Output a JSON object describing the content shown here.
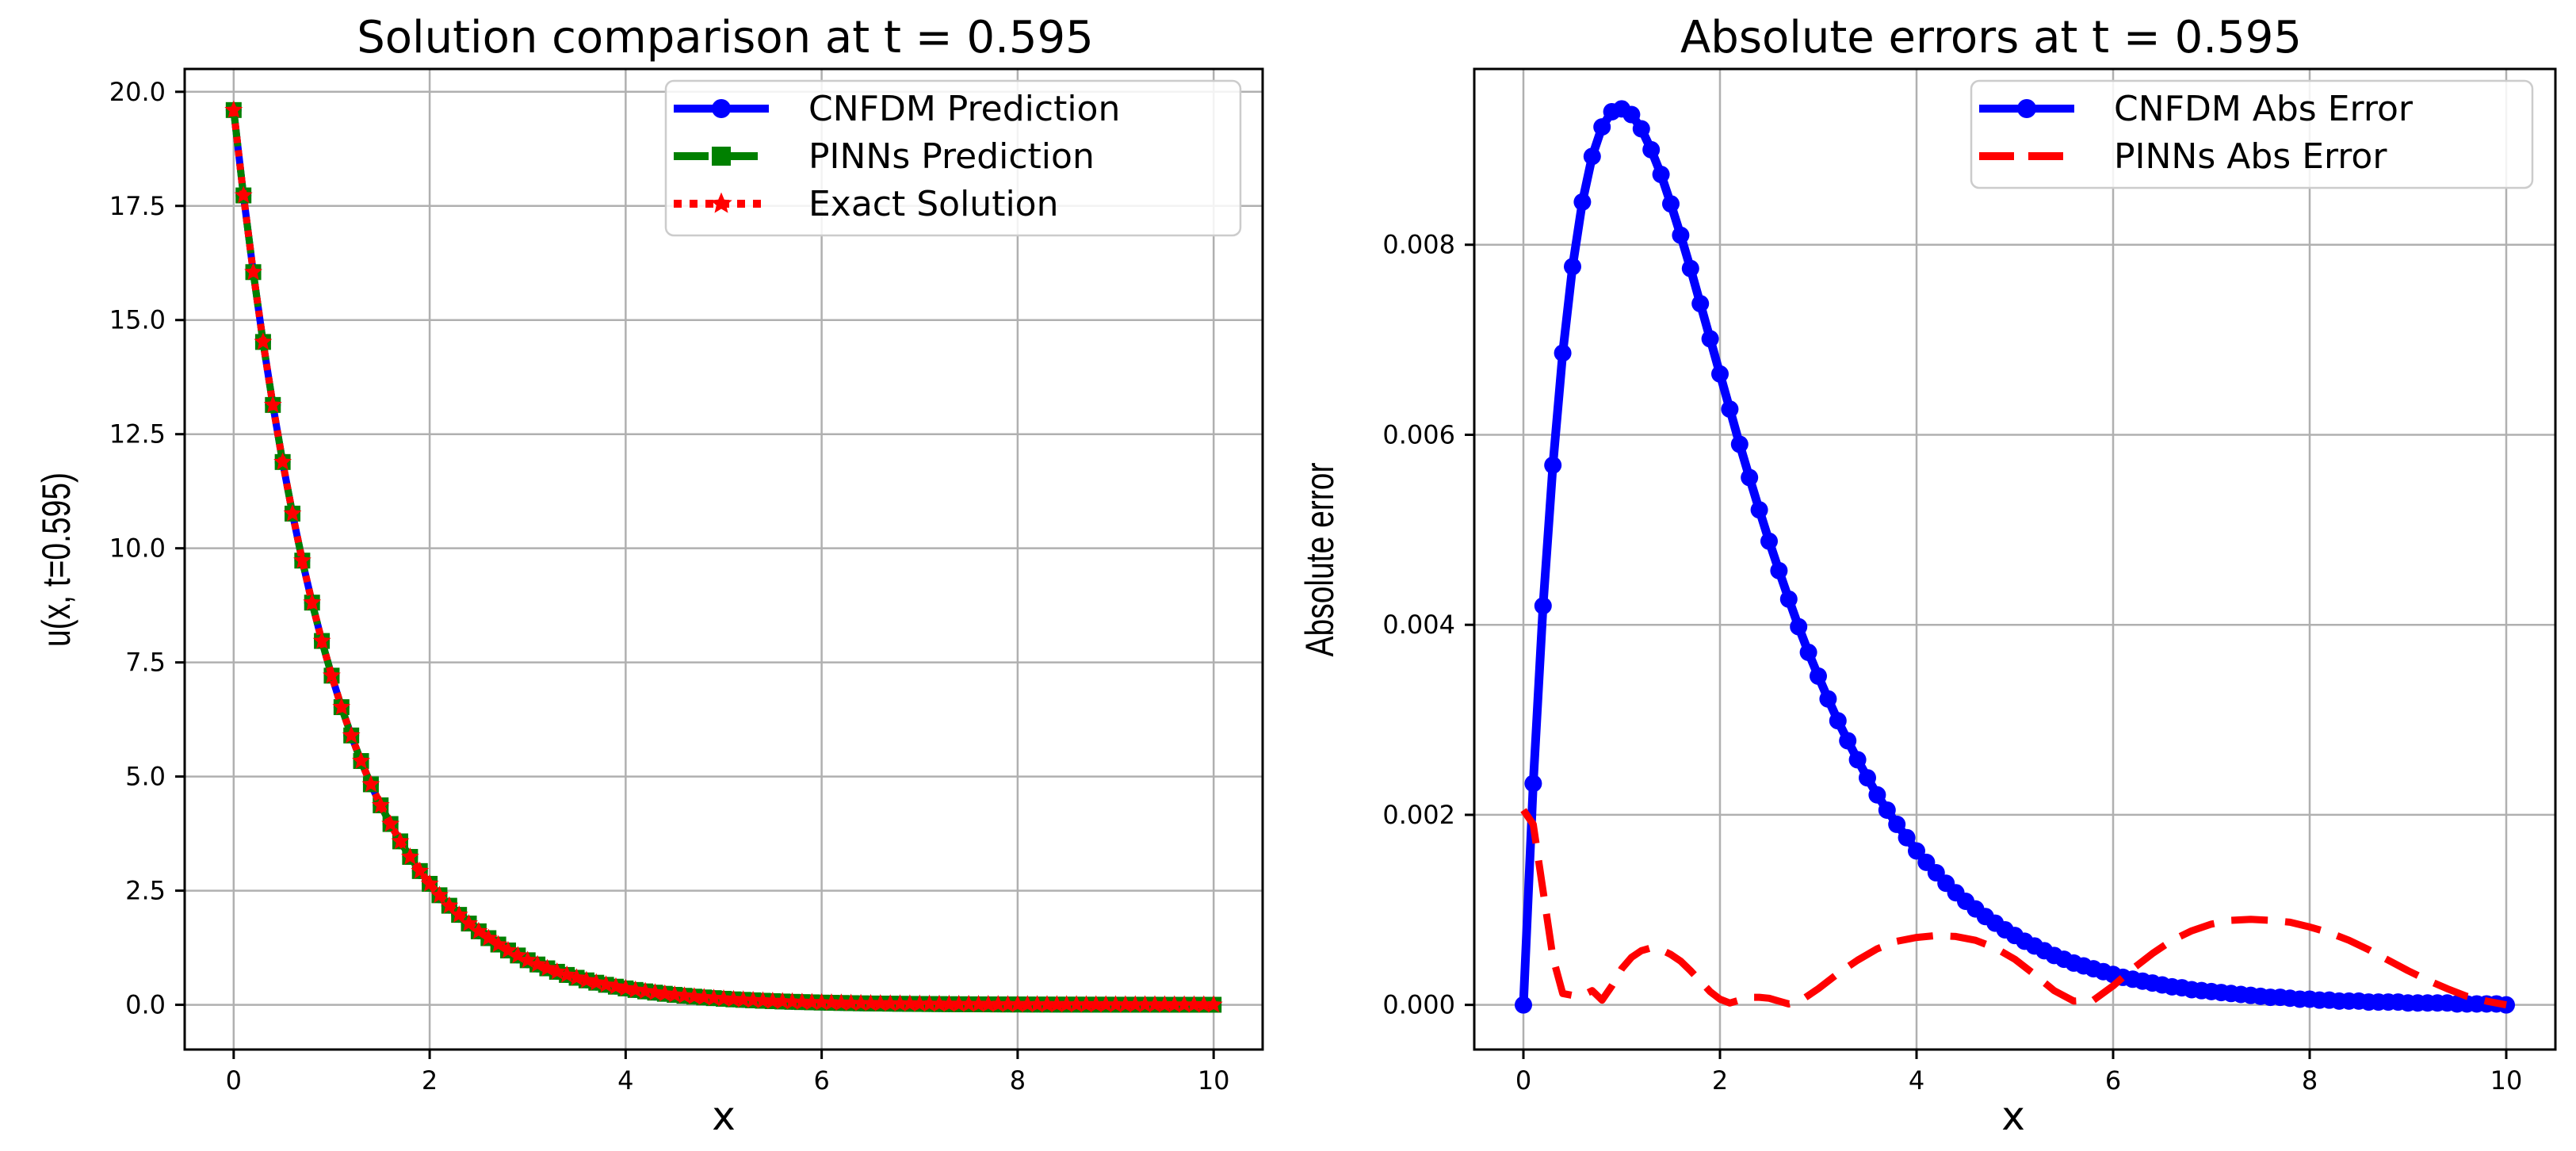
{
  "chart_data": [
    {
      "type": "line",
      "title": "Solution comparison at t = 0.595",
      "xlabel": "x",
      "ylabel": "u(x, t=0.595)",
      "xlim": [
        -0.5,
        10.5
      ],
      "ylim": [
        -0.98,
        20.5
      ],
      "xticks": [
        0,
        2,
        4,
        6,
        8,
        10
      ],
      "xtick_labels": [
        "0",
        "2",
        "4",
        "6",
        "8",
        "10"
      ],
      "yticks": [
        0,
        2.5,
        5,
        7.5,
        10,
        12.5,
        15,
        17.5,
        20
      ],
      "ytick_labels": [
        "0.0",
        "2.5",
        "5.0",
        "7.5",
        "10.0",
        "12.5",
        "15.0",
        "17.5",
        "20.0"
      ],
      "grid": true,
      "legend_position": "upper right",
      "x": [
        0,
        0.1,
        0.2,
        0.3,
        0.4,
        0.5,
        0.6,
        0.7,
        0.8,
        0.9,
        1.0,
        1.1,
        1.2,
        1.3,
        1.4,
        1.5,
        1.6,
        1.7,
        1.8,
        1.9,
        2.0,
        2.1,
        2.2,
        2.3,
        2.4,
        2.5,
        2.6,
        2.7,
        2.8,
        2.9,
        3.0,
        3.1,
        3.2,
        3.3,
        3.4,
        3.5,
        3.6,
        3.7,
        3.8,
        3.9,
        4.0,
        4.1,
        4.2,
        4.3,
        4.4,
        4.5,
        4.6,
        4.7,
        4.8,
        4.9,
        5.0,
        5.1,
        5.2,
        5.3,
        5.4,
        5.5,
        5.6,
        5.7,
        5.8,
        5.9,
        6.0,
        6.1,
        6.2,
        6.3,
        6.4,
        6.5,
        6.6,
        6.7,
        6.8,
        6.9,
        7.0,
        7.1,
        7.2,
        7.3,
        7.4,
        7.5,
        7.6,
        7.7,
        7.8,
        7.9,
        8.0,
        8.1,
        8.2,
        8.3,
        8.4,
        8.5,
        8.6,
        8.7,
        8.8,
        8.9,
        9.0,
        9.1,
        9.2,
        9.3,
        9.4,
        9.5,
        9.6,
        9.7,
        9.8,
        9.9,
        10.0
      ],
      "series": [
        {
          "name": "CNFDM Prediction",
          "color": "#0000ff",
          "marker": "circle",
          "linestyle": "solid",
          "values": [
            19.6,
            17.73,
            16.05,
            14.52,
            13.14,
            11.89,
            10.76,
            9.73,
            8.81,
            7.97,
            7.21,
            6.52,
            5.9,
            5.34,
            4.83,
            4.37,
            3.96,
            3.58,
            3.24,
            2.93,
            2.65,
            2.4,
            2.17,
            1.97,
            1.78,
            1.61,
            1.46,
            1.32,
            1.19,
            1.08,
            0.976,
            0.883,
            0.799,
            0.723,
            0.654,
            0.592,
            0.535,
            0.484,
            0.438,
            0.397,
            0.359,
            0.325,
            0.294,
            0.266,
            0.241,
            0.218,
            0.197,
            0.178,
            0.161,
            0.146,
            0.132,
            0.119,
            0.108,
            0.098,
            0.088,
            0.08,
            0.072,
            0.065,
            0.059,
            0.054,
            0.048,
            0.044,
            0.04,
            0.036,
            0.032,
            0.029,
            0.027,
            0.024,
            0.022,
            0.02,
            0.018,
            0.016,
            0.015,
            0.013,
            0.012,
            0.011,
            0.01,
            0.009,
            0.008,
            0.007,
            0.007,
            0.006,
            0.005,
            0.005,
            0.004,
            0.004,
            0.004,
            0.003,
            0.003,
            0.003,
            0.002,
            0.002,
            0.002,
            0.002,
            0.002,
            0.001,
            0.001,
            0.001,
            0.001,
            0.001,
            0.001
          ]
        },
        {
          "name": "PINNs Prediction",
          "color": "#008000",
          "marker": "square",
          "linestyle": "dashed",
          "values": [
            19.6,
            17.73,
            16.05,
            14.52,
            13.14,
            11.89,
            10.76,
            9.73,
            8.81,
            7.97,
            7.21,
            6.52,
            5.9,
            5.34,
            4.83,
            4.37,
            3.96,
            3.58,
            3.24,
            2.93,
            2.65,
            2.4,
            2.17,
            1.97,
            1.78,
            1.61,
            1.46,
            1.32,
            1.19,
            1.08,
            0.976,
            0.883,
            0.799,
            0.723,
            0.654,
            0.592,
            0.535,
            0.484,
            0.438,
            0.397,
            0.359,
            0.325,
            0.294,
            0.266,
            0.241,
            0.218,
            0.197,
            0.178,
            0.161,
            0.146,
            0.132,
            0.119,
            0.108,
            0.098,
            0.088,
            0.08,
            0.072,
            0.065,
            0.059,
            0.054,
            0.048,
            0.044,
            0.04,
            0.036,
            0.032,
            0.029,
            0.027,
            0.024,
            0.022,
            0.02,
            0.018,
            0.016,
            0.015,
            0.013,
            0.012,
            0.011,
            0.01,
            0.009,
            0.008,
            0.007,
            0.007,
            0.006,
            0.005,
            0.005,
            0.004,
            0.004,
            0.004,
            0.003,
            0.003,
            0.003,
            0.002,
            0.002,
            0.002,
            0.002,
            0.002,
            0.001,
            0.001,
            0.001,
            0.001,
            0.001,
            0.001
          ]
        },
        {
          "name": "Exact Solution",
          "color": "#ff0000",
          "marker": "star",
          "linestyle": "dotted",
          "values": [
            19.6,
            17.73,
            16.05,
            14.52,
            13.14,
            11.89,
            10.76,
            9.73,
            8.81,
            7.97,
            7.21,
            6.52,
            5.9,
            5.34,
            4.83,
            4.37,
            3.96,
            3.58,
            3.24,
            2.93,
            2.65,
            2.4,
            2.17,
            1.97,
            1.78,
            1.61,
            1.46,
            1.32,
            1.19,
            1.08,
            0.976,
            0.883,
            0.799,
            0.723,
            0.654,
            0.592,
            0.535,
            0.484,
            0.438,
            0.397,
            0.359,
            0.325,
            0.294,
            0.266,
            0.241,
            0.218,
            0.197,
            0.178,
            0.161,
            0.146,
            0.132,
            0.119,
            0.108,
            0.098,
            0.088,
            0.08,
            0.072,
            0.065,
            0.059,
            0.054,
            0.048,
            0.044,
            0.04,
            0.036,
            0.032,
            0.029,
            0.027,
            0.024,
            0.022,
            0.02,
            0.018,
            0.016,
            0.015,
            0.013,
            0.012,
            0.011,
            0.01,
            0.009,
            0.008,
            0.007,
            0.007,
            0.006,
            0.005,
            0.005,
            0.004,
            0.004,
            0.004,
            0.003,
            0.003,
            0.003,
            0.002,
            0.002,
            0.002,
            0.002,
            0.002,
            0.001,
            0.001,
            0.001,
            0.001,
            0.001,
            0.001
          ]
        }
      ]
    },
    {
      "type": "line",
      "title": "Absolute errors at t = 0.595",
      "xlabel": "x",
      "ylabel": "Absolute error",
      "xlim": [
        -0.5,
        10.5
      ],
      "ylim": [
        -0.00047,
        0.00985
      ],
      "xticks": [
        0,
        2,
        4,
        6,
        8,
        10
      ],
      "xtick_labels": [
        "0",
        "2",
        "4",
        "6",
        "8",
        "10"
      ],
      "yticks": [
        0,
        0.002,
        0.004,
        0.006,
        0.008
      ],
      "ytick_labels": [
        "0.000",
        "0.002",
        "0.004",
        "0.006",
        "0.008"
      ],
      "grid": true,
      "legend_position": "upper right",
      "x": [
        0,
        0.1,
        0.2,
        0.3,
        0.4,
        0.5,
        0.6,
        0.7,
        0.8,
        0.9,
        1.0,
        1.1,
        1.2,
        1.3,
        1.4,
        1.5,
        1.6,
        1.7,
        1.8,
        1.9,
        2.0,
        2.1,
        2.2,
        2.3,
        2.4,
        2.5,
        2.6,
        2.7,
        2.8,
        2.9,
        3.0,
        3.1,
        3.2,
        3.3,
        3.4,
        3.5,
        3.6,
        3.7,
        3.8,
        3.9,
        4.0,
        4.1,
        4.2,
        4.3,
        4.4,
        4.5,
        4.6,
        4.7,
        4.8,
        4.9,
        5.0,
        5.1,
        5.2,
        5.3,
        5.4,
        5.5,
        5.6,
        5.7,
        5.8,
        5.9,
        6.0,
        6.1,
        6.2,
        6.3,
        6.4,
        6.5,
        6.6,
        6.7,
        6.8,
        6.9,
        7.0,
        7.1,
        7.2,
        7.3,
        7.4,
        7.5,
        7.6,
        7.7,
        7.8,
        7.9,
        8.0,
        8.1,
        8.2,
        8.3,
        8.4,
        8.5,
        8.6,
        8.7,
        8.8,
        8.9,
        9.0,
        9.1,
        9.2,
        9.3,
        9.4,
        9.5,
        9.6,
        9.7,
        9.8,
        9.9,
        10.0
      ],
      "series": [
        {
          "name": "CNFDM Abs Error",
          "color": "#0000ff",
          "marker": "circle",
          "linestyle": "solid",
          "values": [
            0.0,
            0.00233,
            0.0042,
            0.00568,
            0.00686,
            0.00777,
            0.00845,
            0.00893,
            0.00924,
            0.0094,
            0.00943,
            0.00937,
            0.00922,
            0.009,
            0.00874,
            0.00843,
            0.0081,
            0.00775,
            0.00738,
            0.00701,
            0.00664,
            0.00627,
            0.0059,
            0.00555,
            0.00521,
            0.00488,
            0.00457,
            0.00427,
            0.00398,
            0.00371,
            0.00346,
            0.00322,
            0.00299,
            0.00278,
            0.00258,
            0.00239,
            0.00221,
            0.00205,
            0.0019,
            0.00176,
            0.00162,
            0.0015,
            0.00139,
            0.00128,
            0.00118,
            0.00109,
            0.00101,
            0.00093,
            0.00086,
            0.00079,
            0.00073,
            0.00067,
            0.00062,
            0.00057,
            0.00052,
            0.00048,
            0.00044,
            0.00041,
            0.00038,
            0.00035,
            0.00032,
            0.00029,
            0.00027,
            0.00025,
            0.00023,
            0.00021,
            0.00019,
            0.00018,
            0.00016,
            0.00015,
            0.00014,
            0.00013,
            0.00012,
            0.00011,
            0.0001,
            9e-05,
            8e-05,
            8e-05,
            7e-05,
            6e-05,
            6e-05,
            5e-05,
            5e-05,
            4e-05,
            4e-05,
            4e-05,
            3e-05,
            3e-05,
            3e-05,
            3e-05,
            2e-05,
            2e-05,
            2e-05,
            2e-05,
            2e-05,
            1e-05,
            1e-05,
            1e-05,
            1e-05,
            1e-05,
            0.0
          ]
        },
        {
          "name": "PINNs Abs Error",
          "color": "#ff0000",
          "marker": "none",
          "linestyle": "dashed",
          "x": [
            0,
            0.1,
            0.2,
            0.3,
            0.4,
            0.5,
            0.6,
            0.7,
            0.8,
            0.9,
            1.0,
            1.1,
            1.2,
            1.3,
            1.4,
            1.5,
            1.6,
            1.7,
            1.8,
            1.9,
            2.0,
            2.1,
            2.2,
            2.3,
            2.4,
            2.5,
            2.6,
            2.7,
            2.8,
            3.0,
            3.2,
            3.4,
            3.6,
            3.8,
            4.0,
            4.2,
            4.4,
            4.6,
            4.8,
            5.0,
            5.2,
            5.4,
            5.6,
            5.8,
            6.0,
            6.2,
            6.4,
            6.6,
            6.8,
            7.0,
            7.2,
            7.4,
            7.6,
            7.8,
            8.0,
            8.2,
            8.4,
            8.6,
            8.8,
            9.0,
            9.2,
            9.4,
            9.6,
            9.8,
            10.0
          ],
          "values": [
            0.00205,
            0.0019,
            0.0012,
            0.0005,
            0.00012,
            0.0001,
            0.0001,
            0.00015,
            5e-05,
            0.0002,
            0.00038,
            0.0005,
            0.00057,
            0.0006,
            0.00058,
            0.00053,
            0.00046,
            0.00036,
            0.00025,
            0.00014,
            6e-05,
            2e-05,
            5e-05,
            8e-05,
            8e-05,
            7e-05,
            4e-05,
            1e-05,
            3e-05,
            0.00017,
            0.00033,
            0.00047,
            0.00059,
            0.00067,
            0.00071,
            0.00073,
            0.00072,
            0.00068,
            0.0006,
            0.00048,
            0.00032,
            0.00015,
            4e-05,
            5e-05,
            0.0002,
            0.00038,
            0.00054,
            0.00068,
            0.00078,
            0.00085,
            0.00089,
            0.0009,
            0.00089,
            0.00087,
            0.00082,
            0.00076,
            0.00068,
            0.00058,
            0.00047,
            0.00036,
            0.00026,
            0.00017,
            9e-05,
            4e-05,
            0.0
          ]
        }
      ]
    }
  ]
}
